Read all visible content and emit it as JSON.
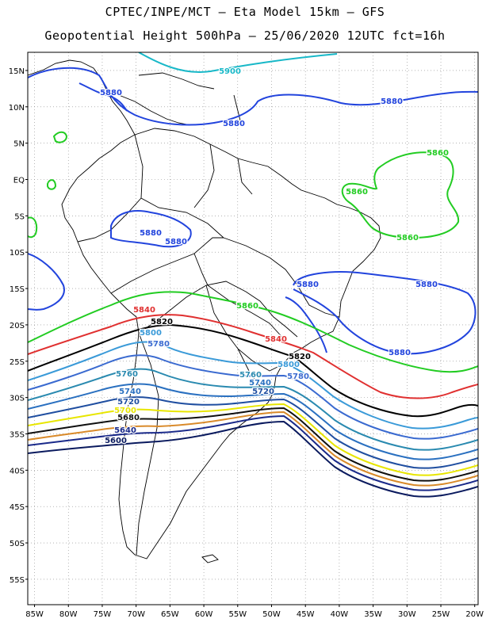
{
  "header": {
    "title_line1": "CPTEC/INPE/MCT –  Eta Model 15km – GFS",
    "title_line2": "Geopotential Height 500hPa – 25/06/2020 12UTC fct=16h"
  },
  "axes": {
    "lat_labels": [
      "15N",
      "10N",
      "5N",
      "EQ",
      "5S",
      "10S",
      "15S",
      "20S",
      "25S",
      "30S",
      "35S",
      "40S",
      "45S",
      "50S",
      "55S"
    ],
    "lon_labels": [
      "85W",
      "80W",
      "75W",
      "70W",
      "65W",
      "60W",
      "55W",
      "50W",
      "45W",
      "40W",
      "35W",
      "30W",
      "25W",
      "20W"
    ],
    "grid": true,
    "lon_range": [
      -86,
      -19.5
    ],
    "lat_range": [
      17.5,
      -58.5
    ]
  },
  "colors": {
    "5600": "#0a1a5e",
    "5620": "#6a2a80",
    "5640": "#1a2a8a",
    "5660": "#d98a2a",
    "5680": "#101010",
    "5700": "#e8e600",
    "5720": "#1f4ea0",
    "5740": "#2a70c0",
    "5760": "#2a8ab0",
    "5780": "#3a6ad0",
    "5800": "#3a9ad8",
    "5820": "#000000",
    "5840": "#e03030",
    "5860": "#22cc22",
    "5880": "#2244dd",
    "5900": "#18b8c8",
    "coast": "#000000"
  },
  "contour_labels": [
    {
      "text": "5900",
      "level": "5900"
    },
    {
      "text": "5880",
      "level": "5880"
    },
    {
      "text": "5880",
      "level": "5880"
    },
    {
      "text": "5880",
      "level": "5880"
    },
    {
      "text": "5860",
      "level": "5860"
    },
    {
      "text": "5860",
      "level": "5860"
    },
    {
      "text": "5860",
      "level": "5860"
    },
    {
      "text": "5880",
      "level": "5880"
    },
    {
      "text": "5880",
      "level": "5880"
    },
    {
      "text": "5880",
      "level": "5880"
    },
    {
      "text": "5880",
      "level": "5880"
    },
    {
      "text": "5860",
      "level": "5860"
    },
    {
      "text": "5880",
      "level": "5880"
    },
    {
      "text": "5840",
      "level": "5840"
    },
    {
      "text": "5820",
      "level": "5820"
    },
    {
      "text": "5800",
      "level": "5800"
    },
    {
      "text": "5780",
      "level": "5780"
    },
    {
      "text": "5840",
      "level": "5840"
    },
    {
      "text": "5820",
      "level": "5820"
    },
    {
      "text": "5800",
      "level": "5800"
    },
    {
      "text": "5780",
      "level": "5780"
    },
    {
      "text": "5760",
      "level": "5760"
    },
    {
      "text": "5740",
      "level": "5740"
    },
    {
      "text": "5720",
      "level": "5720"
    },
    {
      "text": "5760",
      "level": "5760"
    },
    {
      "text": "5740",
      "level": "5740"
    },
    {
      "text": "5720",
      "level": "5720"
    },
    {
      "text": "5700",
      "level": "5700"
    },
    {
      "text": "5680",
      "level": "5680"
    },
    {
      "text": "5640",
      "level": "5640"
    },
    {
      "text": "5600",
      "level": "5600"
    }
  ]
}
